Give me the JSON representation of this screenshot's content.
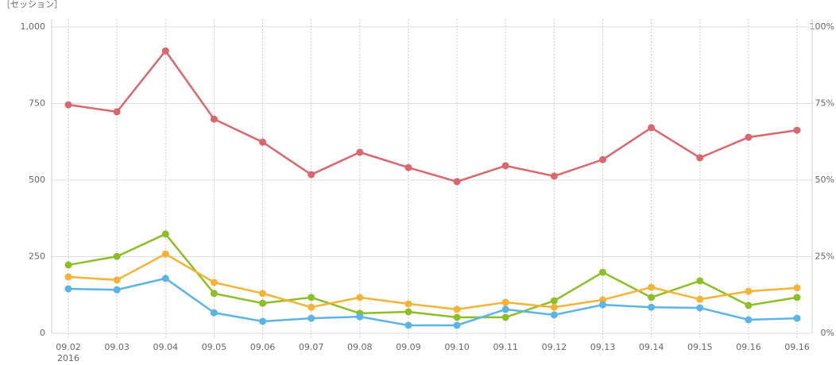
{
  "chart_data": {
    "type": "line",
    "title": "［セッション］",
    "x_note": "2016",
    "categories": [
      "09.02",
      "09.03",
      "09.04",
      "09.05",
      "09.06",
      "09.07",
      "09.08",
      "09.09",
      "09.10",
      "09.11",
      "09.12",
      "09.13",
      "09.14",
      "09.15",
      "09.16",
      "09.16"
    ],
    "series": [
      {
        "color": "#d9676b",
        "values": [
          746,
          723,
          922,
          699,
          624,
          518,
          591,
          541,
          495,
          547,
          513,
          567,
          671,
          573,
          640,
          663
        ]
      },
      {
        "color": "#8cbf26",
        "values": [
          223,
          251,
          324,
          130,
          98,
          117,
          65,
          70,
          52,
          52,
          106,
          199,
          117,
          171,
          91,
          117
        ]
      },
      {
        "color": "#f5b335",
        "values": [
          184,
          174,
          259,
          166,
          130,
          85,
          117,
          96,
          78,
          101,
          85,
          109,
          150,
          111,
          137,
          148
        ]
      },
      {
        "color": "#5ab4e5",
        "values": [
          145,
          142,
          179,
          67,
          39,
          49,
          54,
          26,
          26,
          78,
          60,
          93,
          85,
          83,
          44,
          49
        ]
      }
    ],
    "ylim": [
      0,
      1000
    ],
    "yticks": [
      0,
      250,
      500,
      750,
      {
        "value": 1000,
        "label": "1,000"
      }
    ],
    "y2lim": [
      0,
      100
    ],
    "y2ticks": [
      {
        "value": 0,
        "label": "0%"
      },
      {
        "value": 25,
        "label": "25%"
      },
      {
        "value": 50,
        "label": "50%"
      },
      {
        "value": 75,
        "label": "75%"
      },
      {
        "value": 100,
        "label": "100%"
      }
    ],
    "grid": true
  }
}
